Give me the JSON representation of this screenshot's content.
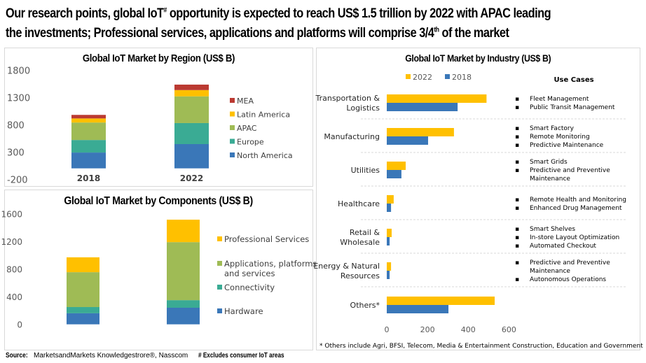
{
  "headline": {
    "line1_pre": "Our research points, global IoT",
    "line1_sup": "#",
    "line1_post": " opportunity is expected to reach US$ 1.5 trillion by 2022 with APAC leading",
    "line2_pre": "the investments; Professional services, applications and platforms will comprise 3/4",
    "line2_sup": "th",
    "line2_post": " of the market"
  },
  "colors": {
    "north_america": "#3a77b8",
    "europe": "#3aab94",
    "apac": "#9fbb55",
    "latin_america": "#ffc000",
    "mea": "#bb3a32",
    "y2022": "#ffc000",
    "y2018": "#3a77b8"
  },
  "chart_data": [
    {
      "type": "bar",
      "stacked": true,
      "title": "Global IoT Market by Region (US$ B)",
      "categories": [
        "2018",
        "2022"
      ],
      "series": [
        {
          "name": "North America",
          "color": "#3a77b8",
          "values": [
            290,
            445
          ]
        },
        {
          "name": "Europe",
          "color": "#3aab94",
          "values": [
            230,
            385
          ]
        },
        {
          "name": "APAC",
          "color": "#9fbb55",
          "values": [
            320,
            490
          ]
        },
        {
          "name": "Latin America",
          "color": "#ffc000",
          "values": [
            75,
            115
          ]
        },
        {
          "name": "MEA",
          "color": "#bb3a32",
          "values": [
            65,
            100
          ]
        }
      ],
      "legend_order": [
        "MEA",
        "Latin America",
        "APAC",
        "Europe",
        "North America"
      ],
      "yticks": [
        "1800",
        "1300",
        "800",
        "300",
        "-200"
      ],
      "ylim": [
        -200,
        1800
      ],
      "legend": "right",
      "xlabel": "",
      "ylabel": ""
    },
    {
      "type": "bar",
      "stacked": true,
      "title": "Global IoT Market by Components (US$ B)",
      "categories": [
        "2018",
        "2022"
      ],
      "series": [
        {
          "name": "Hardware",
          "color": "#3a77b8",
          "values": [
            160,
            240
          ]
        },
        {
          "name": "Connectivity",
          "color": "#3aab94",
          "values": [
            90,
            110
          ]
        },
        {
          "name": "Applications, platforms and services",
          "color": "#9fbb55",
          "values": [
            505,
            840
          ]
        },
        {
          "name": "Professional Services",
          "color": "#ffc000",
          "values": [
            215,
            325
          ]
        }
      ],
      "legend_order": [
        "Professional Services",
        "Applications, platforms and services",
        "Connectivity",
        "Hardware"
      ],
      "legend_lines": {
        "Professional Services": [
          "Professional Services"
        ],
        "Applications, platforms and services": [
          "Applications, platforms",
          "and services"
        ],
        "Connectivity": [
          "Connectivity"
        ],
        "Hardware": [
          "Hardware"
        ]
      },
      "yticks": [
        "1600",
        "1200",
        "800",
        "400",
        "0"
      ],
      "ylim": [
        0,
        1600
      ],
      "legend": "right",
      "xlabel": "",
      "ylabel": ""
    },
    {
      "type": "bar",
      "orientation": "horizontal",
      "title": "Global IoT Market by Industry (US$ B)",
      "categories": [
        "Transportation & Logistics",
        "Manufacturing",
        "Utilities",
        "Healthcare",
        "Retail & Wholesale",
        "Energy & Natural Resources",
        "Others*"
      ],
      "category_lines": [
        [
          "Transportation &",
          "Logistics"
        ],
        [
          "Manufacturing"
        ],
        [
          "Utilities"
        ],
        [
          "Healthcare"
        ],
        [
          "Retail &",
          "Wholesale"
        ],
        [
          "Energy & Natural",
          "Resources"
        ],
        [
          "Others*"
        ]
      ],
      "series": [
        {
          "name": "2022",
          "color": "#ffc000",
          "values": [
            490,
            330,
            93,
            34,
            24,
            21,
            530
          ]
        },
        {
          "name": "2018",
          "color": "#3a77b8",
          "values": [
            348,
            203,
            72,
            21,
            14,
            14,
            303
          ]
        }
      ],
      "xticks": [
        "0",
        "200",
        "400",
        "600"
      ],
      "xlim": [
        0,
        600
      ],
      "legend": "top",
      "xlabel": "",
      "ylabel": ""
    }
  ],
  "use_cases": {
    "title": "Use Cases",
    "groups": [
      [
        "Fleet Management",
        "Public Transit Management"
      ],
      [
        "Smart Factory",
        "Remote Monitoring",
        "Predictive Maintenance"
      ],
      [
        "Smart Grids",
        "Predictive and Preventive Maintenance"
      ],
      [
        "Remote Health and Monitoring",
        "Enhanced Drug Management"
      ],
      [
        "Smart Shelves",
        "In-store Layout Optimization",
        "Automated Checkout"
      ],
      [
        "Predictive and Preventive Maintenance",
        "Autonomous Operations"
      ],
      []
    ],
    "wrapped_lines": [
      [
        [
          "Fleet Management"
        ],
        [
          "Public Transit Management"
        ]
      ],
      [
        [
          "Smart Factory"
        ],
        [
          "Remote Monitoring"
        ],
        [
          "Predictive Maintenance"
        ]
      ],
      [
        [
          "Smart Grids"
        ],
        [
          "Predictive and Preventive",
          "Maintenance"
        ]
      ],
      [
        [
          "Remote Health and Monitoring"
        ],
        [
          "Enhanced Drug Management"
        ]
      ],
      [
        [
          "Smart Shelves"
        ],
        [
          "In-store Layout Optimization"
        ],
        [
          "Automated Checkout"
        ]
      ],
      [
        [
          "Predictive and Preventive",
          "Maintenance"
        ],
        [
          "Autonomous Operations"
        ]
      ],
      []
    ]
  },
  "industry_footnote": "* Others include Agri, BFSI, Telecom, Media & Entertainment Construction, Education and Government",
  "footer": {
    "source_label": "Source:",
    "source_text": " MarketsandMarkets Knowledgestrore®, Nasscom",
    "exclusion_note": "# Excludes consumer IoT areas"
  }
}
